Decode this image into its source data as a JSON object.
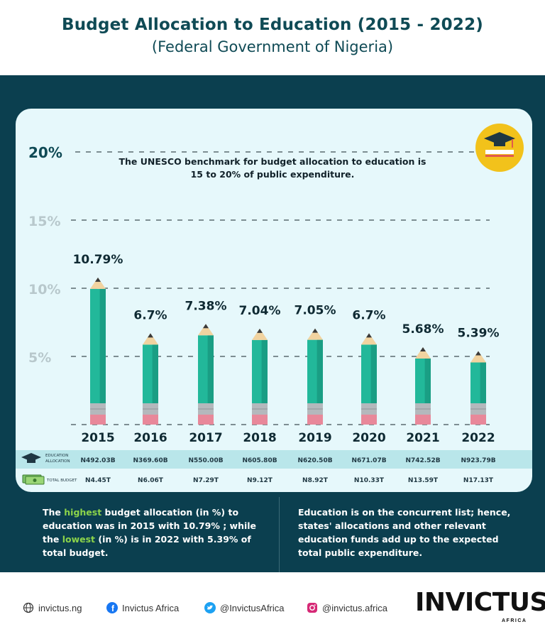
{
  "header": {
    "title": "Budget Allocation to Education (2015 - 2022)",
    "subtitle": "(Federal Government of Nigeria)"
  },
  "benchmark_note": [
    "The UNESCO benchmark for budget allocation to education is",
    "15 to 20% of public expenditure."
  ],
  "table_labels": {
    "education_allocation": [
      "EDUCATION",
      "ALLOCATION"
    ],
    "total_budget": "TOTAL BUDGET"
  },
  "chart_data": {
    "type": "bar",
    "categories": [
      "2015",
      "2016",
      "2017",
      "2018",
      "2019",
      "2020",
      "2021",
      "2022"
    ],
    "values": [
      10.79,
      6.7,
      7.38,
      7.04,
      7.05,
      6.7,
      5.68,
      5.39
    ],
    "value_labels": [
      "10.79%",
      "6.7%",
      "7.38%",
      "7.04%",
      "7.05%",
      "6.7%",
      "5.68%",
      "5.39%"
    ],
    "ylim": [
      0,
      20
    ],
    "yticks": [
      5,
      10,
      15,
      20
    ],
    "ytick_labels": [
      "5%",
      "10%",
      "15%",
      "20%"
    ],
    "grid": true,
    "education_allocation": [
      "N492.03B",
      "N369.60B",
      "N550.00B",
      "N605.80B",
      "N620.50B",
      "N671.07B",
      "N742.52B",
      "N923.79B"
    ],
    "total_budget": [
      "N4.45T",
      "N6.06T",
      "N7.29T",
      "N9.12T",
      "N8.92T",
      "N10.33T",
      "N13.59T",
      "N17.13T"
    ]
  },
  "notes": {
    "left": {
      "l1a": "The ",
      "l1b": "highest",
      "l1c": " budget allocation (in %) to",
      "l2": "education was in 2015 with 10.79% ; while",
      "l3a": "the ",
      "l3b": "lowest",
      "l3c": " (in %) is in 2022 with 5.39% of",
      "l4": "total budget."
    },
    "right": [
      "Education is on the concurrent list; hence,",
      "states' allocations and other relevant",
      "education funds add up to the expected",
      "total public expenditure."
    ]
  },
  "footer": {
    "website": "invictus.ng",
    "facebook": "Invictus Africa",
    "twitter": "@InvictusAfrica",
    "instagram": "@invictus.africa",
    "brand": "INVICTUS",
    "brand_sub": "AFRICA"
  },
  "colors": {
    "dark_panel": "#0b3f4f",
    "card": "#e6f8fb",
    "pencil_body": "#22b89a",
    "highlight": "#8cd44a",
    "title": "#0f4a55"
  }
}
